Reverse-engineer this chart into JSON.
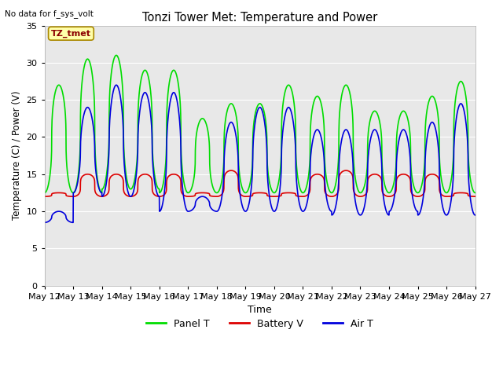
{
  "title": "Tonzi Tower Met: Temperature and Power",
  "ylabel": "Temperature (C) / Power (V)",
  "xlabel": "Time",
  "no_data_text": "No data for f_sys_volt",
  "legend_label": "TZ_tmet",
  "ylim": [
    0,
    35
  ],
  "yticks": [
    0,
    5,
    10,
    15,
    20,
    25,
    30,
    35
  ],
  "x_tick_labels": [
    "May 12",
    "May 13",
    "May 14",
    "May 15",
    "May 16",
    "May 17",
    "May 18",
    "May 19",
    "May 20",
    "May 21",
    "May 22",
    "May 23",
    "May 24",
    "May 25",
    "May 26",
    "May 27"
  ],
  "fig_bg_color": "#ffffff",
  "plot_bg_color": "#e8e8e8",
  "grid_color": "#ffffff",
  "panel_color": "#00dd00",
  "battery_color": "#dd0000",
  "air_color": "#0000dd",
  "line_width": 1.2,
  "days": 15,
  "panel_peaks": [
    27.0,
    30.5,
    31.0,
    29.0,
    29.0,
    22.5,
    24.5,
    24.5,
    27.0,
    25.5,
    27.0,
    23.5,
    23.5,
    25.5,
    27.5
  ],
  "panel_troughs": [
    12.5,
    12.5,
    13.0,
    13.0,
    12.5,
    12.5,
    12.5,
    12.5,
    12.5,
    12.5,
    12.5,
    12.5,
    12.5,
    12.5,
    12.5
  ],
  "battery_peaks": [
    12.5,
    15.0,
    15.0,
    15.0,
    15.0,
    12.5,
    15.5,
    12.5,
    12.5,
    15.0,
    15.5,
    15.0,
    15.0,
    15.0,
    12.5
  ],
  "battery_troughs": [
    12.0,
    12.0,
    12.0,
    12.0,
    12.0,
    12.0,
    12.0,
    12.0,
    12.0,
    12.0,
    12.0,
    12.0,
    12.0,
    12.0,
    12.0
  ],
  "air_peaks": [
    10.0,
    24.0,
    27.0,
    26.0,
    26.0,
    12.0,
    22.0,
    24.0,
    24.0,
    21.0,
    21.0,
    21.0,
    21.0,
    22.0,
    24.5
  ],
  "air_troughs": [
    8.5,
    12.5,
    12.0,
    12.0,
    10.0,
    10.0,
    10.0,
    10.0,
    10.0,
    10.0,
    9.5,
    9.5,
    10.0,
    9.5,
    9.5
  ]
}
